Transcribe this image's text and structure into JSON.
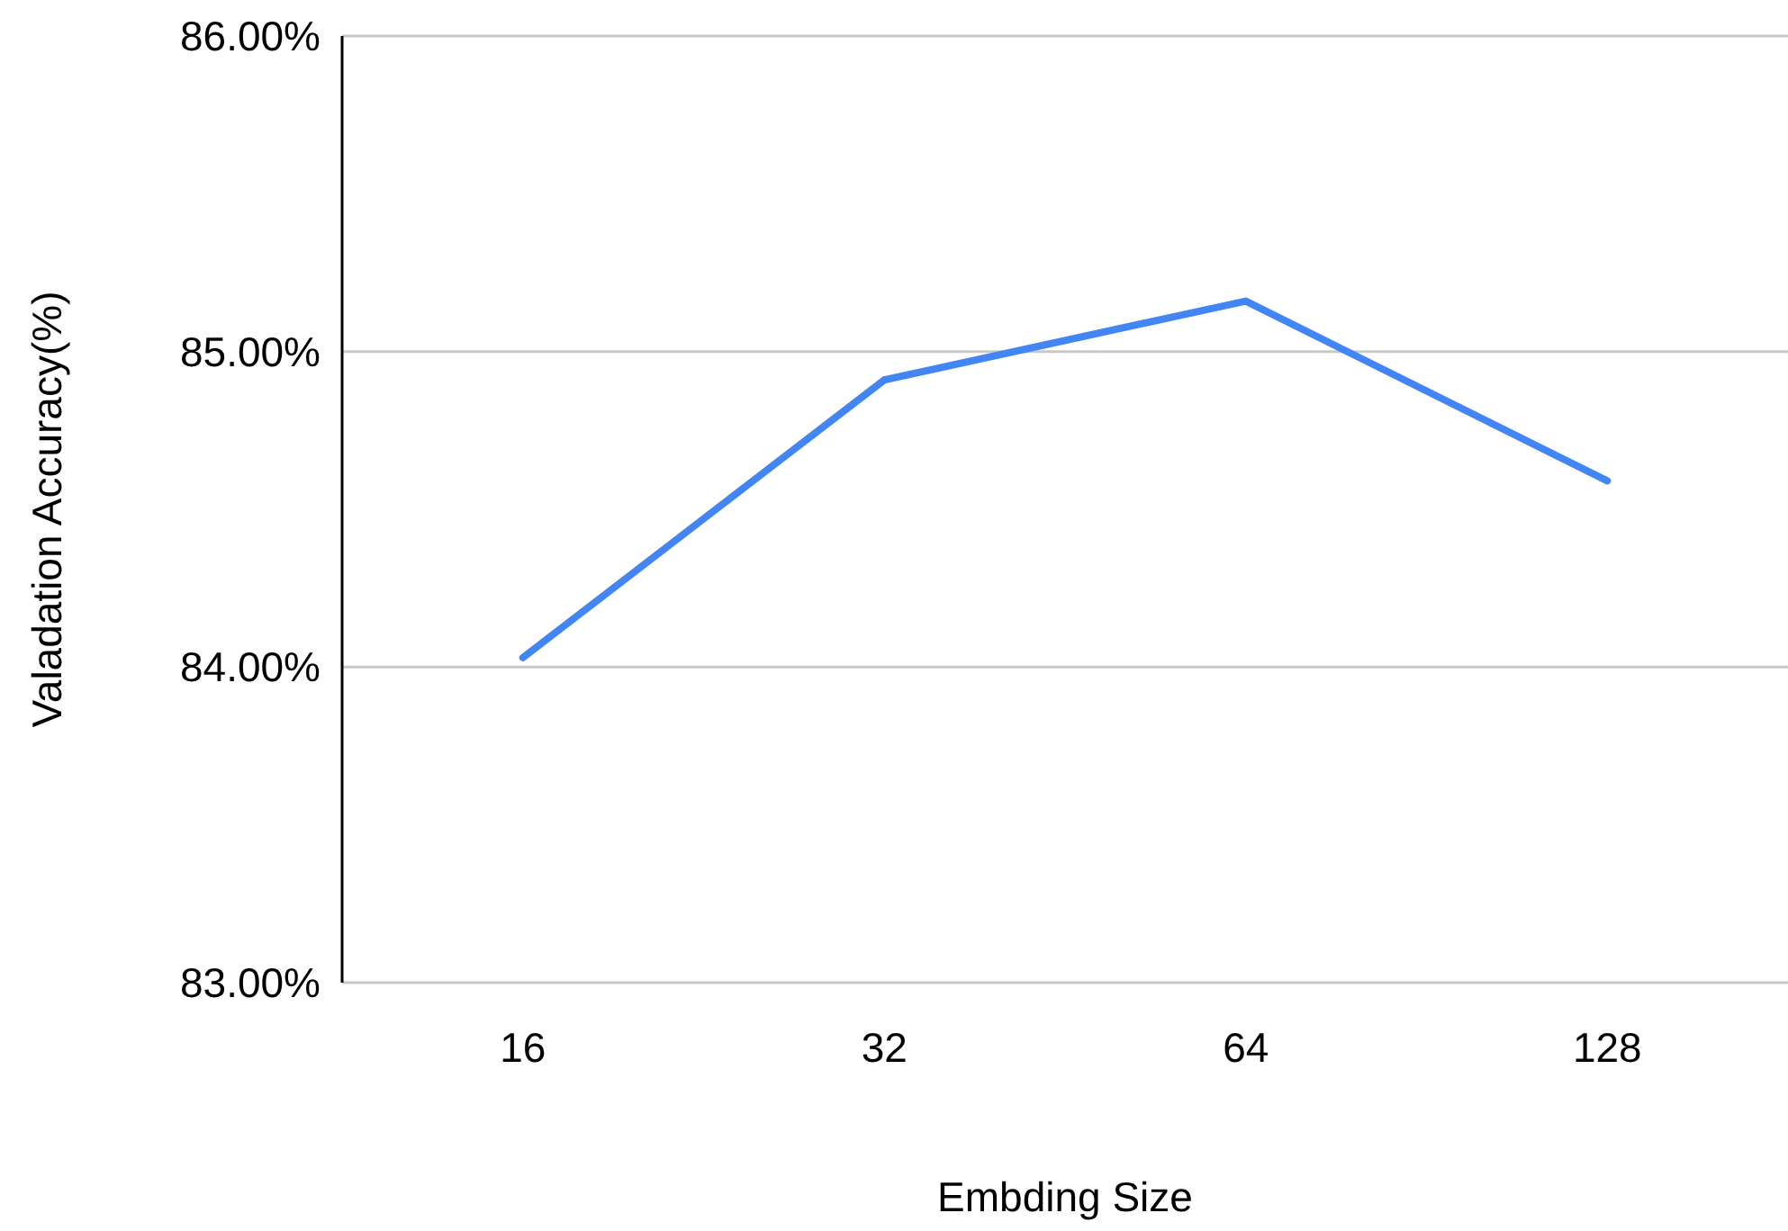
{
  "chart_data": {
    "type": "line",
    "xlabel": "Embding Size",
    "ylabel": "Valadation Accuracy(%)",
    "categories": [
      "16",
      "32",
      "64",
      "128"
    ],
    "series": [
      {
        "color": "#4285f4",
        "values": [
          84.03,
          84.91,
          85.16,
          84.59
        ]
      }
    ],
    "ylim": [
      83,
      86
    ],
    "yticks": [
      {
        "value": 83,
        "label": "83.00%"
      },
      {
        "value": 84,
        "label": "84.00%"
      },
      {
        "value": 85,
        "label": "85.00%"
      },
      {
        "value": 86,
        "label": "86.00%"
      }
    ],
    "grid": "y",
    "marker": "none",
    "line_style": "solid"
  }
}
